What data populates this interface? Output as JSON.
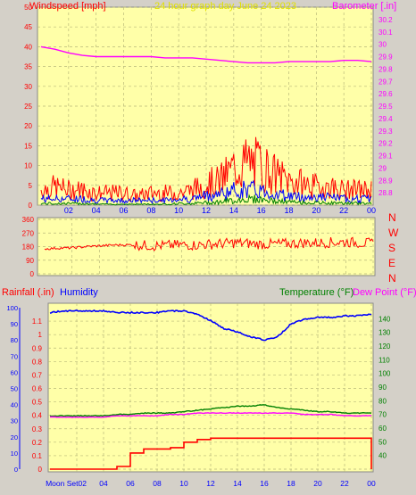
{
  "colors": {
    "panel_bg": "#ffffa8",
    "page_bg": "#d4d0c8",
    "wind": "#ff0000",
    "gust_avg": "#0000ff",
    "wind_low": "#008000",
    "barometer": "#ff00ff",
    "direction": "#ff0000",
    "humidity": "#0000ff",
    "temperature": "#008000",
    "dewpoint": "#ff00ff",
    "rain": "#ff0000",
    "grid": "#b9b97a",
    "title": "#e0e000"
  },
  "chart_data": [
    {
      "type": "line",
      "id": "wind-barometer",
      "title": "24 hour graph day   June 24 2023",
      "y_left_label": "Windspeed [mph]",
      "y_right_label": "Barometer [.in]",
      "x_ticks": [
        "02",
        "04",
        "06",
        "08",
        "10",
        "12",
        "14",
        "16",
        "18",
        "20",
        "22",
        "00"
      ],
      "ylim_left": [
        0,
        50
      ],
      "y_left_ticks": [
        "0",
        "5",
        "10",
        "15",
        "20",
        "25",
        "30",
        "35",
        "40",
        "45",
        "50"
      ],
      "ylim_right": [
        28.7,
        30.3
      ],
      "y_right_ticks": [
        "28.8",
        "28.9",
        "29",
        "29.1",
        "29.2",
        "29.3",
        "29.4",
        "29.5",
        "29.6",
        "29.7",
        "29.8",
        "29.9",
        "30",
        "30.1",
        "30.2"
      ],
      "hours": [
        0,
        1,
        2,
        3,
        4,
        5,
        6,
        7,
        8,
        9,
        10,
        11,
        12,
        13,
        14,
        15,
        16,
        17,
        18,
        19,
        20,
        21,
        22,
        23,
        24
      ],
      "series": [
        {
          "key": "gust",
          "values": [
            5,
            6,
            5,
            5,
            4,
            4,
            4,
            3,
            4,
            4,
            4,
            5,
            7,
            8,
            12,
            14,
            13,
            10,
            8,
            7,
            6,
            6,
            5,
            5,
            5
          ]
        },
        {
          "key": "avg",
          "values": [
            2,
            2,
            2,
            2,
            1.5,
            1.5,
            1.5,
            1.5,
            1.5,
            1.5,
            2,
            2,
            3,
            3.5,
            4.5,
            5,
            4.5,
            3.5,
            3,
            2.5,
            2.5,
            2.5,
            2,
            2,
            2
          ]
        },
        {
          "key": "low",
          "values": [
            0.5,
            0.5,
            0.5,
            0.5,
            0.3,
            0.3,
            0.3,
            0.3,
            0.3,
            0.3,
            0.5,
            0.5,
            0.8,
            1,
            1.5,
            2,
            1.8,
            1.2,
            1,
            0.8,
            0.7,
            0.7,
            0.6,
            0.6,
            0.6
          ]
        },
        {
          "key": "barometer",
          "values": [
            29.98,
            29.96,
            29.93,
            29.91,
            29.9,
            29.9,
            29.9,
            29.9,
            29.9,
            29.89,
            29.89,
            29.89,
            29.88,
            29.87,
            29.86,
            29.85,
            29.85,
            29.85,
            29.86,
            29.86,
            29.86,
            29.86,
            29.87,
            29.87,
            29.86
          ]
        }
      ]
    },
    {
      "type": "line",
      "id": "wind-direction",
      "y_ticks": [
        "0",
        "90",
        "180",
        "270",
        "360"
      ],
      "ylim": [
        0,
        360
      ],
      "compass": [
        "N",
        "W",
        "S",
        "E",
        "N"
      ],
      "hours": [
        0,
        1,
        2,
        3,
        4,
        5,
        6,
        7,
        8,
        9,
        10,
        11,
        12,
        13,
        14,
        15,
        16,
        17,
        18,
        19,
        20,
        21,
        22,
        23,
        24
      ],
      "values": [
        165,
        170,
        172,
        180,
        185,
        190,
        192,
        190,
        185,
        188,
        192,
        190,
        195,
        200,
        205,
        200,
        195,
        198,
        200,
        205,
        205,
        208,
        210,
        205,
        200
      ]
    },
    {
      "type": "line",
      "id": "rain-humidity-temp",
      "y_left_label": "Rainfall (.in)",
      "y_left2_label": "Humidity",
      "y_right_label": "Temperature (°F)",
      "y_right2_label": "Dew Point (°F)",
      "x_ticks": [
        "Moon Set02",
        "04",
        "06",
        "08",
        "10",
        "12",
        "14",
        "16",
        "18",
        "20",
        "22",
        "00"
      ],
      "ylim_rain": [
        0,
        1.2
      ],
      "y_rain_ticks": [
        "0",
        "0.1",
        "0.2",
        "0.3",
        "0.4",
        "0.5",
        "0.6",
        "0.7",
        "0.8",
        "0.9",
        "1",
        "1.1"
      ],
      "ylim_humidity": [
        0,
        100
      ],
      "y_humidity_ticks": [
        "0",
        "10",
        "20",
        "30",
        "40",
        "50",
        "60",
        "70",
        "80",
        "90",
        "100"
      ],
      "ylim_temp": [
        30,
        148
      ],
      "y_temp_ticks": [
        "40",
        "50",
        "60",
        "70",
        "80",
        "90",
        "100",
        "110",
        "120",
        "130",
        "140"
      ],
      "hours": [
        0,
        1,
        2,
        3,
        4,
        5,
        6,
        7,
        8,
        9,
        10,
        11,
        12,
        13,
        14,
        15,
        16,
        17,
        18,
        19,
        20,
        21,
        22,
        23,
        24
      ],
      "series": [
        {
          "key": "humidity",
          "values": [
            97,
            98,
            98,
            98,
            98,
            97,
            97,
            97,
            97,
            98,
            98,
            96,
            92,
            87,
            85,
            82,
            80,
            82,
            90,
            93,
            94,
            94,
            95,
            95,
            96
          ]
        },
        {
          "key": "temperature",
          "values": [
            69,
            69,
            69,
            69,
            69,
            70,
            70,
            71,
            71,
            71,
            72,
            73,
            74,
            75,
            76,
            76,
            77,
            75,
            74,
            73,
            72,
            72,
            71,
            71,
            71
          ]
        },
        {
          "key": "dewpoint",
          "values": [
            68,
            68,
            68,
            68,
            68,
            69,
            69,
            69,
            69,
            70,
            70,
            71,
            71,
            71,
            71,
            71,
            71,
            71,
            71,
            70,
            70,
            70,
            69,
            69,
            69
          ]
        },
        {
          "key": "rain",
          "values": [
            0,
            0,
            0,
            0,
            0,
            0.02,
            0.12,
            0.15,
            0.15,
            0.16,
            0.2,
            0.22,
            0.23,
            0.23,
            0.23,
            0.23,
            0.23,
            0.23,
            0.23,
            0.23,
            0.23,
            0.23,
            0.23,
            0.23,
            0
          ]
        }
      ]
    }
  ]
}
